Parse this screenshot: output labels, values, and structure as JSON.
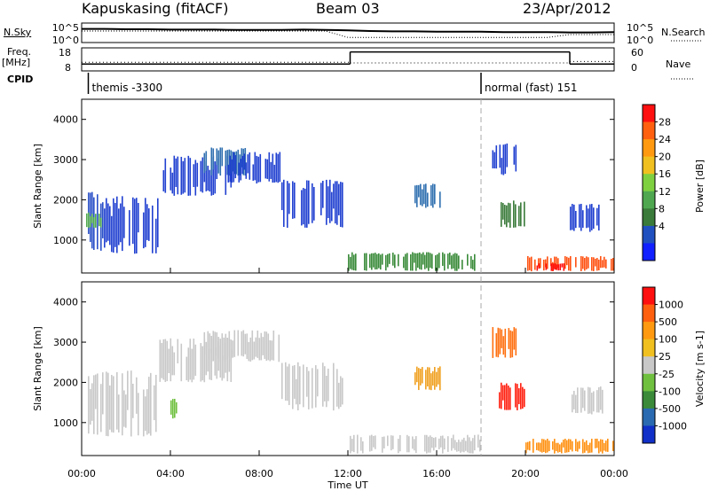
{
  "header": {
    "station": "Kapuskasing (fitACF)",
    "beam": "Beam 03",
    "date": "23/Apr/2012"
  },
  "panels": {
    "noise": {
      "left_label": "N.Sky",
      "right_label": "N.Search",
      "left_ticks": [
        "10^5",
        "10^0"
      ],
      "right_ticks": [
        "10^5",
        "10^0"
      ],
      "sky_level": [
        3.6,
        3.6,
        3.5,
        3.5,
        3.4,
        3.4,
        3.4,
        3.3,
        3.3,
        3.3,
        3.4,
        3.3,
        3.2,
        3.0,
        2.9,
        2.9,
        2.8,
        2.8,
        2.8,
        2.7,
        2.7,
        2.7,
        2.6,
        2.6,
        2.7
      ],
      "search_level": [
        3.0,
        3.0,
        3.0,
        3.0,
        3.0,
        3.0,
        3.0,
        3.0,
        3.0,
        3.0,
        3.0,
        3.0,
        1.2,
        1.2,
        1.2,
        1.2,
        1.2,
        1.2,
        1.2,
        1.2,
        1.2,
        1.2,
        2.0,
        2.0,
        2.0
      ]
    },
    "freq": {
      "left_label": "Freq.",
      "left_unit": "[MHz]",
      "right_label": "Nave",
      "left_ticks": [
        "18",
        "8"
      ],
      "right_ticks": [
        "60",
        "0"
      ],
      "freq_steps": [
        {
          "t0": 0,
          "t1": 12.1,
          "value": 10.8
        },
        {
          "t0": 12.1,
          "t1": 22.0,
          "value": 16.5
        },
        {
          "t0": 22.0,
          "t1": 24.0,
          "value": 10.8
        }
      ],
      "nave_steps": [
        {
          "t0": 0,
          "t1": 12.1,
          "value": 22
        },
        {
          "t0": 12.1,
          "t1": 22.0,
          "value": 20
        },
        {
          "t0": 22.0,
          "t1": 24.0,
          "value": 24
        }
      ]
    },
    "cpid": {
      "label": "CPID",
      "modes": [
        {
          "name": "themis -3300",
          "start": 0.3
        },
        {
          "name": "normal (fast) 151",
          "start": 18.0
        }
      ]
    }
  },
  "chart_data": [
    {
      "type": "heatmap",
      "quantity": "Power",
      "ylabel": "Slant Range [km]",
      "ylim": [
        180,
        4500
      ],
      "yticks": [
        1000,
        2000,
        3000,
        4000
      ],
      "xlim": [
        0,
        24
      ],
      "colorbar": {
        "label": "Power [dB]",
        "ticks": [
          "28",
          "24",
          "20",
          "16",
          "12",
          "8",
          "4"
        ],
        "colors": [
          "#1020ff",
          "#2050c0",
          "#3a7a3a",
          "#4fa850",
          "#7fd040",
          "#f0c020",
          "#ff9a10",
          "#ff6010",
          "#ff1010"
        ]
      },
      "regions": [
        {
          "t0": 0.2,
          "t1": 1.0,
          "r0": 700,
          "r1": 2300,
          "color": "#2a50c8"
        },
        {
          "t0": 0.2,
          "t1": 1.0,
          "r0": 1300,
          "r1": 1700,
          "color": "#4fa850"
        },
        {
          "t0": 1.0,
          "t1": 3.5,
          "r0": 650,
          "r1": 2100,
          "color": "#2040d0"
        },
        {
          "t0": 3.5,
          "t1": 6.8,
          "r0": 2100,
          "r1": 3100,
          "color": "#2040d0"
        },
        {
          "t0": 5.5,
          "t1": 7.5,
          "r0": 2600,
          "r1": 3300,
          "color": "#3070b0"
        },
        {
          "t0": 6.5,
          "t1": 9.0,
          "r0": 2400,
          "r1": 3200,
          "color": "#2040d0"
        },
        {
          "t0": 9.0,
          "t1": 11.8,
          "r0": 1300,
          "r1": 2500,
          "color": "#2040d0"
        },
        {
          "t0": 12.0,
          "t1": 18.0,
          "r0": 230,
          "r1": 700,
          "color": "#3a8a3a"
        },
        {
          "t0": 15.0,
          "t1": 16.2,
          "r0": 1800,
          "r1": 2400,
          "color": "#3070b0"
        },
        {
          "t0": 18.5,
          "t1": 19.6,
          "r0": 2600,
          "r1": 3400,
          "color": "#2040d0"
        },
        {
          "t0": 18.8,
          "t1": 20.0,
          "r0": 1300,
          "r1": 2000,
          "color": "#3a7a3a"
        },
        {
          "t0": 20.0,
          "t1": 24.0,
          "r0": 220,
          "r1": 600,
          "color": "#ff5010"
        },
        {
          "t0": 20.5,
          "t1": 22.0,
          "r0": 230,
          "r1": 420,
          "color": "#ff1010"
        },
        {
          "t0": 22.0,
          "t1": 23.6,
          "r0": 1200,
          "r1": 1900,
          "color": "#2040d0"
        }
      ]
    },
    {
      "type": "heatmap",
      "quantity": "Velocity",
      "ylabel": "Slant Range [km]",
      "xlabel": "Time UT",
      "ylim": [
        180,
        4500
      ],
      "yticks": [
        1000,
        2000,
        3000,
        4000
      ],
      "xlim": [
        0,
        24
      ],
      "xticks": [
        "00:00",
        "04:00",
        "08:00",
        "12:00",
        "16:00",
        "20:00",
        "00:00"
      ],
      "colorbar": {
        "label": "Velocity [m s-1]",
        "ticks": [
          "1000",
          "500",
          "100",
          "25",
          "-25",
          "-100",
          "-500",
          "-1000"
        ],
        "colors": [
          "#1030c8",
          "#2a6ab0",
          "#3a8a3a",
          "#70c040",
          "#c8c8c8",
          "#f0c020",
          "#ff9a10",
          "#ff6010",
          "#ff1010"
        ]
      },
      "regions": [
        {
          "t0": 0.2,
          "t1": 3.5,
          "r0": 650,
          "r1": 2300,
          "color": "#c8c8c8"
        },
        {
          "t0": 3.5,
          "t1": 6.8,
          "r0": 2000,
          "r1": 3100,
          "color": "#c8c8c8"
        },
        {
          "t0": 5.5,
          "t1": 9.0,
          "r0": 2500,
          "r1": 3300,
          "color": "#c8c8c8"
        },
        {
          "t0": 9.0,
          "t1": 11.8,
          "r0": 1300,
          "r1": 2500,
          "color": "#c8c8c8"
        },
        {
          "t0": 4.0,
          "t1": 4.4,
          "r0": 1100,
          "r1": 1600,
          "color": "#70c040"
        },
        {
          "t0": 12.0,
          "t1": 18.0,
          "r0": 230,
          "r1": 700,
          "color": "#c8c8c8"
        },
        {
          "t0": 15.0,
          "t1": 16.2,
          "r0": 1800,
          "r1": 2400,
          "color": "#f0a020"
        },
        {
          "t0": 18.5,
          "t1": 19.6,
          "r0": 2600,
          "r1": 3400,
          "color": "#ff7010"
        },
        {
          "t0": 18.8,
          "t1": 20.0,
          "r0": 1300,
          "r1": 2000,
          "color": "#ff2010"
        },
        {
          "t0": 20.0,
          "t1": 24.0,
          "r0": 230,
          "r1": 600,
          "color": "#ff9010"
        },
        {
          "t0": 22.0,
          "t1": 23.6,
          "r0": 1200,
          "r1": 1900,
          "color": "#c8c8c8"
        }
      ]
    }
  ]
}
